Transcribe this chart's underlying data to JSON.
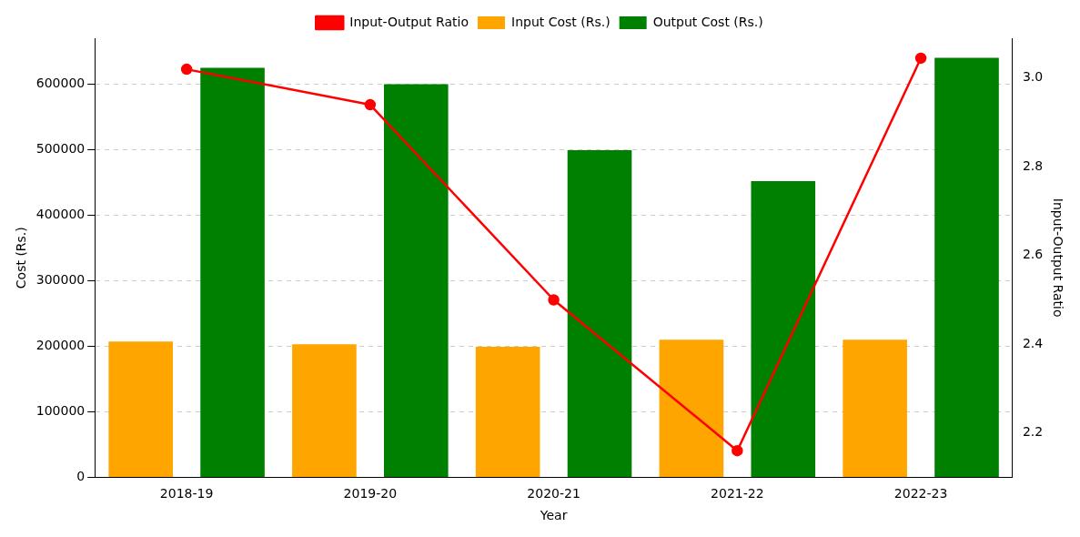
{
  "chart_data": {
    "type": "bar",
    "xlabel": "Year",
    "ylabel": "Cost (Rs.)",
    "y2label": "Input-Output Ratio",
    "categories": [
      "2018-19",
      "2019-20",
      "2020-21",
      "2021-22",
      "2022-23"
    ],
    "series": [
      {
        "name": "Input Cost (Rs.)",
        "color": "#ffa500",
        "values": [
          207000,
          203000,
          199000,
          210000,
          210000
        ]
      },
      {
        "name": "Output Cost (Rs.)",
        "color": "#008000",
        "values": [
          625000,
          600000,
          499000,
          452000,
          640000
        ]
      },
      {
        "name": "Input-Output Ratio",
        "type": "line",
        "axis": "y2",
        "color": "#ff0000",
        "marker": "circle",
        "values": [
          3.02,
          2.94,
          2.5,
          2.16,
          3.045
        ]
      }
    ],
    "ylim": [
      0,
      670000
    ],
    "yticks": [
      0,
      100000,
      200000,
      300000,
      400000,
      500000,
      600000
    ],
    "y2lim": [
      2.1,
      3.09
    ],
    "y2ticks": [
      2.2,
      2.4,
      2.6,
      2.8,
      {
        "value": 3,
        "label": "3.0"
      }
    ],
    "grid": "y",
    "legend": "top"
  }
}
